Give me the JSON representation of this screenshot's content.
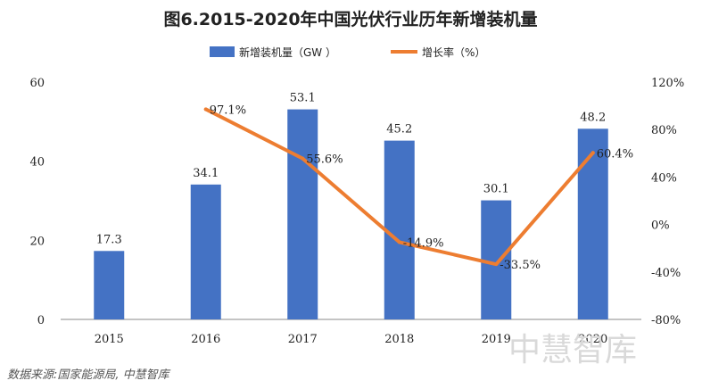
{
  "source": "数据来源:国家能源局, 中慧智库",
  "watermark": "中慧智库",
  "colors": {
    "bar": "#4472c4",
    "line": "#ed7d31",
    "axis": "#888888",
    "text": "#222222"
  },
  "chart_data": {
    "type": "bar",
    "title": "图6.2015-2020年中国光伏行业历年新增装机量",
    "categories": [
      "2015",
      "2016",
      "2017",
      "2018",
      "2019",
      "2020"
    ],
    "series": [
      {
        "name": "新增装机量（GW ）",
        "type": "bar",
        "axis": "left",
        "values": [
          17.3,
          34.1,
          53.1,
          45.2,
          30.1,
          48.2
        ],
        "labels": [
          "17.3",
          "34.1",
          "53.1",
          "45.2",
          "30.1",
          "48.2"
        ]
      },
      {
        "name": "增长率（%）",
        "type": "line",
        "axis": "right",
        "values": [
          null,
          97.1,
          55.6,
          -14.9,
          -33.5,
          60.4
        ],
        "labels": [
          "",
          "97.1%",
          "55.6%",
          "-14.9%",
          "-33.5%",
          "60.4%"
        ]
      }
    ],
    "y_left": {
      "ylim": [
        0,
        60
      ],
      "ticks": [
        0,
        20,
        40,
        60
      ],
      "tick_labels": [
        "0",
        "20",
        "40",
        "60"
      ]
    },
    "y_right": {
      "ylim": [
        -80,
        120
      ],
      "ticks": [
        -80,
        -40,
        0,
        40,
        80,
        120
      ],
      "tick_labels": [
        "-80%",
        "-40%",
        "0%",
        "40%",
        "80%",
        "120%"
      ]
    },
    "legend": "top-center",
    "grid": false
  }
}
